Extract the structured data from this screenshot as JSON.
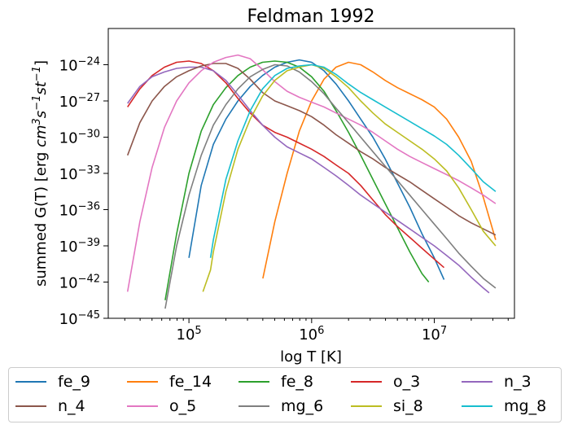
{
  "chart_data": {
    "type": "line",
    "title": "Feldman 1992",
    "xlabel": "log T [K]",
    "ylabel": "summed G(T) [erg cm^3 s^-1 st^-1]",
    "xscale": "log",
    "yscale": "log",
    "xlim": [
      22000,
      45000000
    ],
    "ylim": [
      1e-45,
      1e-21
    ],
    "x_ticks": [
      {
        "value": 100000,
        "label": "10^5"
      },
      {
        "value": 1000000,
        "label": "10^6"
      },
      {
        "value": 10000000,
        "label": "10^7"
      }
    ],
    "y_ticks": [
      {
        "value": 1e-24,
        "label": "10^−24"
      },
      {
        "value": 1e-27,
        "label": "10^−27"
      },
      {
        "value": 1e-30,
        "label": "10^−30"
      },
      {
        "value": 1e-33,
        "label": "10^−33"
      },
      {
        "value": 1e-36,
        "label": "10^−36"
      },
      {
        "value": 1e-39,
        "label": "10^−39"
      },
      {
        "value": 1e-42,
        "label": "10^−42"
      },
      {
        "value": 1e-45,
        "label": "10^−45"
      }
    ],
    "grid": false,
    "legend_position": "bottom",
    "legend_columns": 5,
    "series": [
      {
        "name": "fe_9",
        "color": "#1f77b4",
        "points": [
          [
            100000.0,
            -40.0
          ],
          [
            126000.0,
            -34.0
          ],
          [
            158000.0,
            -30.6
          ],
          [
            200000.0,
            -28.5
          ],
          [
            251000.0,
            -27.0
          ],
          [
            316000.0,
            -25.8
          ],
          [
            398000.0,
            -24.9
          ],
          [
            501000.0,
            -24.2
          ],
          [
            631000.0,
            -23.8
          ],
          [
            794000.0,
            -23.6
          ],
          [
            1000000.0,
            -23.8
          ],
          [
            1260000.0,
            -24.5
          ],
          [
            1580000.0,
            -25.6
          ],
          [
            2000000.0,
            -27.0
          ],
          [
            2510000.0,
            -28.5
          ],
          [
            3160000.0,
            -30.0
          ],
          [
            3980000.0,
            -31.8
          ],
          [
            5010000.0,
            -33.8
          ],
          [
            6310000.0,
            -35.8
          ],
          [
            7940000.0,
            -38.0
          ],
          [
            10000000.0,
            -40.0
          ],
          [
            12000000.0,
            -41.8
          ]
        ]
      },
      {
        "name": "fe_14",
        "color": "#ff7f0e",
        "points": [
          [
            400000.0,
            -41.7
          ],
          [
            501000.0,
            -37.0
          ],
          [
            631000.0,
            -33.0
          ],
          [
            794000.0,
            -29.5
          ],
          [
            1000000.0,
            -27.0
          ],
          [
            1260000.0,
            -25.2
          ],
          [
            1580000.0,
            -24.2
          ],
          [
            2000000.0,
            -23.8
          ],
          [
            2510000.0,
            -24.0
          ],
          [
            3160000.0,
            -24.6
          ],
          [
            3980000.0,
            -25.3
          ],
          [
            5010000.0,
            -25.9
          ],
          [
            6310000.0,
            -26.4
          ],
          [
            7940000.0,
            -26.9
          ],
          [
            10000000.0,
            -27.5
          ],
          [
            12600000.0,
            -28.5
          ],
          [
            15800000.0,
            -30.0
          ],
          [
            20000000.0,
            -32.0
          ],
          [
            25100000.0,
            -35.0
          ],
          [
            31600000.0,
            -38.5
          ]
        ]
      },
      {
        "name": "fe_8",
        "color": "#2ca02c",
        "points": [
          [
            64000.0,
            -43.5
          ],
          [
            79400.0,
            -38.0
          ],
          [
            100000.0,
            -33.0
          ],
          [
            126000.0,
            -29.5
          ],
          [
            158000.0,
            -27.3
          ],
          [
            200000.0,
            -25.9
          ],
          [
            251000.0,
            -24.9
          ],
          [
            316000.0,
            -24.2
          ],
          [
            398000.0,
            -23.8
          ],
          [
            501000.0,
            -23.7
          ],
          [
            631000.0,
            -23.8
          ],
          [
            794000.0,
            -24.2
          ],
          [
            1000000.0,
            -25.0
          ],
          [
            1260000.0,
            -26.2
          ],
          [
            1580000.0,
            -27.8
          ],
          [
            2000000.0,
            -29.6
          ],
          [
            2510000.0,
            -31.5
          ],
          [
            3160000.0,
            -33.5
          ],
          [
            3980000.0,
            -35.5
          ],
          [
            5010000.0,
            -37.5
          ],
          [
            6310000.0,
            -39.5
          ],
          [
            7940000.0,
            -41.3
          ],
          [
            9000000.0,
            -42.0
          ]
        ]
      },
      {
        "name": "o_3",
        "color": "#d62728",
        "points": [
          [
            31600.0,
            -27.5
          ],
          [
            39800.0,
            -26.0
          ],
          [
            50100.0,
            -24.9
          ],
          [
            63100.0,
            -24.2
          ],
          [
            79400.0,
            -23.8
          ],
          [
            100000.0,
            -23.7
          ],
          [
            126000.0,
            -23.9
          ],
          [
            158000.0,
            -24.5
          ],
          [
            200000.0,
            -25.5
          ],
          [
            251000.0,
            -26.8
          ],
          [
            316000.0,
            -28.0
          ],
          [
            398000.0,
            -29.0
          ],
          [
            501000.0,
            -29.6
          ],
          [
            631000.0,
            -30.0
          ],
          [
            794000.0,
            -30.5
          ],
          [
            1000000.0,
            -31.0
          ],
          [
            1260000.0,
            -31.6
          ],
          [
            1580000.0,
            -32.3
          ],
          [
            2000000.0,
            -33.0
          ],
          [
            2510000.0,
            -34.0
          ],
          [
            3160000.0,
            -35.2
          ],
          [
            3980000.0,
            -36.4
          ],
          [
            5010000.0,
            -37.4
          ],
          [
            6310000.0,
            -38.3
          ],
          [
            7940000.0,
            -39.2
          ],
          [
            10000000.0,
            -40.1
          ],
          [
            12000000.0,
            -40.8
          ]
        ]
      },
      {
        "name": "n_3",
        "color": "#9467bd",
        "points": [
          [
            31600.0,
            -27.2
          ],
          [
            39800.0,
            -25.8
          ],
          [
            50100.0,
            -25.0
          ],
          [
            63100.0,
            -24.6
          ],
          [
            79400.0,
            -24.3
          ],
          [
            100000.0,
            -24.2
          ],
          [
            126000.0,
            -24.2
          ],
          [
            158000.0,
            -24.5
          ],
          [
            200000.0,
            -25.3
          ],
          [
            251000.0,
            -26.5
          ],
          [
            316000.0,
            -27.8
          ],
          [
            398000.0,
            -29.0
          ],
          [
            501000.0,
            -30.0
          ],
          [
            631000.0,
            -30.8
          ],
          [
            794000.0,
            -31.3
          ],
          [
            1000000.0,
            -31.8
          ],
          [
            1260000.0,
            -32.5
          ],
          [
            1580000.0,
            -33.2
          ],
          [
            2000000.0,
            -34.0
          ],
          [
            2510000.0,
            -34.8
          ],
          [
            3160000.0,
            -35.5
          ],
          [
            3980000.0,
            -36.2
          ],
          [
            5010000.0,
            -36.9
          ],
          [
            6310000.0,
            -37.6
          ],
          [
            7940000.0,
            -38.3
          ],
          [
            10000000.0,
            -39.0
          ],
          [
            12600000.0,
            -39.8
          ],
          [
            15800000.0,
            -40.6
          ],
          [
            20000000.0,
            -41.6
          ],
          [
            25100000.0,
            -42.5
          ],
          [
            28000000.0,
            -42.9
          ]
        ]
      },
      {
        "name": "n_4",
        "color": "#8c564b",
        "points": [
          [
            31600.0,
            -31.5
          ],
          [
            39800.0,
            -28.8
          ],
          [
            50100.0,
            -27.0
          ],
          [
            63100.0,
            -25.8
          ],
          [
            79400.0,
            -25.0
          ],
          [
            100000.0,
            -24.5
          ],
          [
            126000.0,
            -24.1
          ],
          [
            158000.0,
            -23.9
          ],
          [
            200000.0,
            -23.9
          ],
          [
            251000.0,
            -24.3
          ],
          [
            316000.0,
            -25.2
          ],
          [
            398000.0,
            -26.3
          ],
          [
            501000.0,
            -27.0
          ],
          [
            631000.0,
            -27.4
          ],
          [
            794000.0,
            -27.8
          ],
          [
            1000000.0,
            -28.3
          ],
          [
            1260000.0,
            -29.0
          ],
          [
            1580000.0,
            -29.8
          ],
          [
            2000000.0,
            -30.5
          ],
          [
            2510000.0,
            -31.2
          ],
          [
            3160000.0,
            -31.8
          ],
          [
            3980000.0,
            -32.5
          ],
          [
            5010000.0,
            -33.1
          ],
          [
            6310000.0,
            -33.7
          ],
          [
            7940000.0,
            -34.4
          ],
          [
            10000000.0,
            -35.1
          ],
          [
            12600000.0,
            -35.8
          ],
          [
            15800000.0,
            -36.5
          ],
          [
            20000000.0,
            -37.1
          ],
          [
            25100000.0,
            -37.6
          ],
          [
            31600000.0,
            -38.1
          ]
        ]
      },
      {
        "name": "o_5",
        "color": "#e377c2",
        "points": [
          [
            31600.0,
            -42.8
          ],
          [
            39800.0,
            -37.0
          ],
          [
            50100.0,
            -32.5
          ],
          [
            63100.0,
            -29.2
          ],
          [
            79400.0,
            -27.0
          ],
          [
            100000.0,
            -25.5
          ],
          [
            126000.0,
            -24.5
          ],
          [
            158000.0,
            -23.8
          ],
          [
            200000.0,
            -23.4
          ],
          [
            251000.0,
            -23.2
          ],
          [
            316000.0,
            -23.5
          ],
          [
            398000.0,
            -24.4
          ],
          [
            501000.0,
            -25.4
          ],
          [
            631000.0,
            -26.2
          ],
          [
            794000.0,
            -26.7
          ],
          [
            1000000.0,
            -27.1
          ],
          [
            1260000.0,
            -27.5
          ],
          [
            1580000.0,
            -28.0
          ],
          [
            2000000.0,
            -28.5
          ],
          [
            2510000.0,
            -29.0
          ],
          [
            3160000.0,
            -29.6
          ],
          [
            3980000.0,
            -30.3
          ],
          [
            5010000.0,
            -31.0
          ],
          [
            6310000.0,
            -31.6
          ],
          [
            7940000.0,
            -32.1
          ],
          [
            10000000.0,
            -32.6
          ],
          [
            12600000.0,
            -33.1
          ],
          [
            15800000.0,
            -33.6
          ],
          [
            20000000.0,
            -34.2
          ],
          [
            25100000.0,
            -34.8
          ],
          [
            31600000.0,
            -35.5
          ]
        ]
      },
      {
        "name": "mg_6",
        "color": "#7f7f7f",
        "points": [
          [
            64000.0,
            -44.2
          ],
          [
            79400.0,
            -39.0
          ],
          [
            100000.0,
            -34.8
          ],
          [
            126000.0,
            -31.5
          ],
          [
            158000.0,
            -29.0
          ],
          [
            200000.0,
            -27.3
          ],
          [
            251000.0,
            -26.0
          ],
          [
            316000.0,
            -25.0
          ],
          [
            398000.0,
            -24.4
          ],
          [
            501000.0,
            -24.0
          ],
          [
            631000.0,
            -24.1
          ],
          [
            794000.0,
            -24.6
          ],
          [
            1000000.0,
            -25.4
          ],
          [
            1260000.0,
            -26.4
          ],
          [
            1580000.0,
            -27.6
          ],
          [
            2000000.0,
            -28.8
          ],
          [
            2510000.0,
            -30.0
          ],
          [
            3160000.0,
            -31.2
          ],
          [
            3980000.0,
            -32.4
          ],
          [
            5010000.0,
            -33.6
          ],
          [
            6310000.0,
            -34.8
          ],
          [
            7940000.0,
            -36.0
          ],
          [
            10000000.0,
            -37.2
          ],
          [
            12600000.0,
            -38.4
          ],
          [
            15800000.0,
            -39.6
          ],
          [
            20000000.0,
            -40.7
          ],
          [
            25100000.0,
            -41.7
          ],
          [
            31600000.0,
            -42.5
          ]
        ]
      },
      {
        "name": "si_8",
        "color": "#bcbd22",
        "points": [
          [
            130000.0,
            -42.8
          ],
          [
            150000.0,
            -41.0
          ],
          [
            158000.0,
            -39.5
          ],
          [
            200000.0,
            -34.5
          ],
          [
            251000.0,
            -31.0
          ],
          [
            316000.0,
            -28.5
          ],
          [
            398000.0,
            -26.6
          ],
          [
            501000.0,
            -25.3
          ],
          [
            631000.0,
            -24.5
          ],
          [
            794000.0,
            -24.2
          ],
          [
            1000000.0,
            -24.0
          ],
          [
            1260000.0,
            -24.3
          ],
          [
            1580000.0,
            -25.0
          ],
          [
            2000000.0,
            -25.9
          ],
          [
            2510000.0,
            -27.0
          ],
          [
            3160000.0,
            -28.0
          ],
          [
            3980000.0,
            -28.9
          ],
          [
            5010000.0,
            -29.6
          ],
          [
            6310000.0,
            -30.3
          ],
          [
            7940000.0,
            -31.0
          ],
          [
            10000000.0,
            -31.8
          ],
          [
            12600000.0,
            -32.8
          ],
          [
            15800000.0,
            -34.2
          ],
          [
            20000000.0,
            -36.0
          ],
          [
            25100000.0,
            -37.8
          ],
          [
            31600000.0,
            -39.0
          ]
        ]
      },
      {
        "name": "mg_8",
        "color": "#17becf",
        "points": [
          [
            150000.0,
            -40.0
          ],
          [
            158000.0,
            -38.5
          ],
          [
            200000.0,
            -33.5
          ],
          [
            251000.0,
            -30.3
          ],
          [
            316000.0,
            -27.8
          ],
          [
            398000.0,
            -26.0
          ],
          [
            501000.0,
            -24.9
          ],
          [
            631000.0,
            -24.3
          ],
          [
            794000.0,
            -24.1
          ],
          [
            1000000.0,
            -24.0
          ],
          [
            1260000.0,
            -24.2
          ],
          [
            1580000.0,
            -24.8
          ],
          [
            2000000.0,
            -25.6
          ],
          [
            2510000.0,
            -26.3
          ],
          [
            3160000.0,
            -26.9
          ],
          [
            3980000.0,
            -27.5
          ],
          [
            5010000.0,
            -28.1
          ],
          [
            6310000.0,
            -28.7
          ],
          [
            7940000.0,
            -29.3
          ],
          [
            10000000.0,
            -29.9
          ],
          [
            12600000.0,
            -30.6
          ],
          [
            15800000.0,
            -31.5
          ],
          [
            20000000.0,
            -32.6
          ],
          [
            25100000.0,
            -33.7
          ],
          [
            31600000.0,
            -34.5
          ]
        ]
      }
    ]
  }
}
